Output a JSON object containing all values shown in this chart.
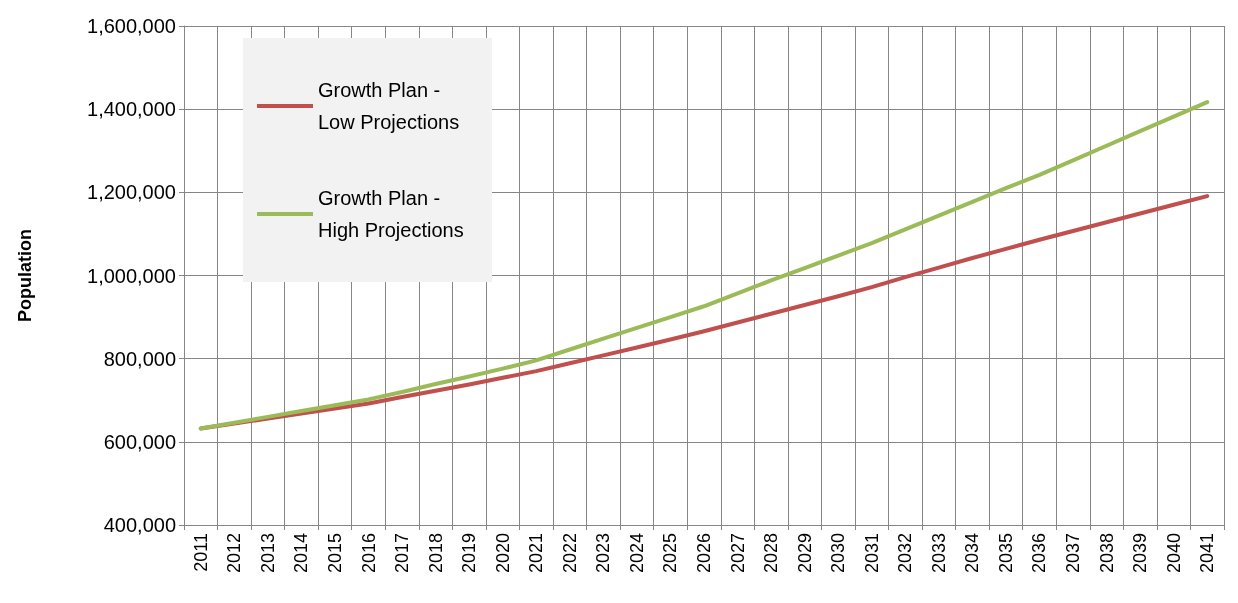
{
  "chart_data": {
    "type": "line",
    "ylabel": "Population",
    "categories": [
      "2011",
      "2012",
      "2013",
      "2014",
      "2015",
      "2016",
      "2017",
      "2018",
      "2019",
      "2020",
      "2021",
      "2022",
      "2023",
      "2024",
      "2025",
      "2026",
      "2027",
      "2028",
      "2029",
      "2030",
      "2031",
      "2032",
      "2033",
      "2034",
      "2035",
      "2036",
      "2037",
      "2038",
      "2039",
      "2040",
      "2041"
    ],
    "series": [
      {
        "name": "Growth Plan - Low Projections",
        "color": "#c0504d",
        "values": [
          632000,
          644000,
          656000,
          668000,
          680000,
          692000,
          708000,
          723000,
          738000,
          754000,
          770000,
          789000,
          808000,
          827000,
          846000,
          866000,
          887000,
          908000,
          929000,
          950000,
          972000,
          996000,
          1019000,
          1042000,
          1064000,
          1086000,
          1107000,
          1128000,
          1149000,
          1170000,
          1191000
        ]
      },
      {
        "name": "Growth Plan - High Projections",
        "color": "#9bbb59",
        "values": [
          632000,
          646000,
          660000,
          674000,
          688000,
          702000,
          720000,
          739000,
          757000,
          776000,
          796000,
          822000,
          848000,
          874000,
          900000,
          926000,
          957000,
          988000,
          1018000,
          1048000,
          1078000,
          1111000,
          1144000,
          1177000,
          1210000,
          1242000,
          1277000,
          1312000,
          1347000,
          1382000,
          1417000
        ]
      }
    ],
    "ylim": [
      400000,
      1600000
    ],
    "yticks": [
      {
        "value": 400000,
        "label": "400,000"
      },
      {
        "value": 600000,
        "label": "600,000"
      },
      {
        "value": 800000,
        "label": "800,000"
      },
      {
        "value": 1000000,
        "label": "1,000,000"
      },
      {
        "value": 1200000,
        "label": "1,200,000"
      },
      {
        "value": 1400000,
        "label": "1,400,000"
      },
      {
        "value": 1600000,
        "label": "1,600,000"
      }
    ],
    "grid": true,
    "legend": "top left",
    "marker": "none",
    "line_style": "solid"
  }
}
